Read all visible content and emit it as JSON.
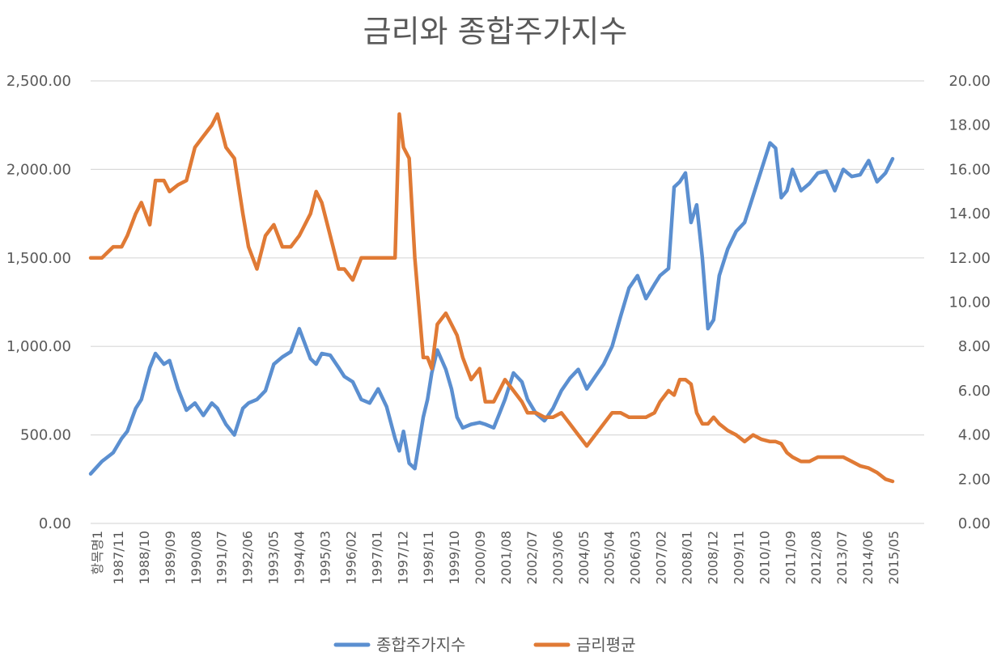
{
  "chart_data": {
    "type": "line",
    "title": "금리와 종합주가지수",
    "xlabel": "",
    "ylabel": "",
    "y_left": {
      "min": 0,
      "max": 2500,
      "ticks": [
        "0.00",
        "500.00",
        "1,000.00",
        "1,500.00",
        "2,000.00",
        "2,500.00"
      ]
    },
    "y_right": {
      "min": 0,
      "max": 20,
      "ticks": [
        "0.00",
        "2.00",
        "4.00",
        "6.00",
        "8.00",
        "10.00",
        "12.00",
        "14.00",
        "16.00",
        "18.00",
        "20.00"
      ]
    },
    "x_tick_labels": [
      "항목명1",
      "1987/11",
      "1988/10",
      "1989/09",
      "1990/08",
      "1991/07",
      "1992/06",
      "1993/05",
      "1994/04",
      "1995/03",
      "1996/02",
      "1997/01",
      "1997/12",
      "1998/11",
      "1999/10",
      "2000/09",
      "2001/08",
      "2002/07",
      "2003/06",
      "2004/05",
      "2005/04",
      "2006/03",
      "2007/02",
      "2008/01",
      "2008/12",
      "2009/11",
      "2010/10",
      "2011/09",
      "2012/08",
      "2013/07",
      "2014/06",
      "2015/05"
    ],
    "x": [
      1987.0,
      1987.4,
      1987.8,
      1988.1,
      1988.3,
      1988.6,
      1988.8,
      1989.1,
      1989.3,
      1989.6,
      1989.8,
      1990.1,
      1990.4,
      1990.7,
      1991.0,
      1991.3,
      1991.5,
      1991.8,
      1992.1,
      1992.4,
      1992.6,
      1992.9,
      1993.2,
      1993.5,
      1993.8,
      1994.1,
      1994.4,
      1994.8,
      1995.0,
      1995.2,
      1995.5,
      1995.8,
      1996.0,
      1996.3,
      1996.6,
      1996.9,
      1997.2,
      1997.5,
      1997.8,
      1997.95,
      1998.1,
      1998.3,
      1998.5,
      1998.8,
      1998.95,
      1999.1,
      1999.3,
      1999.6,
      1999.8,
      2000.0,
      2000.2,
      2000.5,
      2000.8,
      2001.0,
      2001.3,
      2001.5,
      2001.7,
      2002.0,
      2002.3,
      2002.5,
      2002.8,
      2003.1,
      2003.4,
      2003.7,
      2004.0,
      2004.3,
      2004.6,
      2004.9,
      2005.2,
      2005.5,
      2005.8,
      2006.1,
      2006.4,
      2006.7,
      2007.0,
      2007.2,
      2007.5,
      2007.7,
      2007.9,
      2008.1,
      2008.3,
      2008.5,
      2008.7,
      2008.9,
      2009.1,
      2009.3,
      2009.6,
      2009.9,
      2010.2,
      2010.5,
      2010.8,
      2011.1,
      2011.3,
      2011.5,
      2011.7,
      2011.9,
      2012.2,
      2012.5,
      2012.8,
      2013.1,
      2013.4,
      2013.7,
      2014.0,
      2014.3,
      2014.6,
      2014.9,
      2015.2,
      2015.45
    ],
    "series": [
      {
        "name": "종합주가지수",
        "color": "#5b8fd0",
        "axis": "left",
        "values": [
          280,
          350,
          400,
          480,
          520,
          650,
          700,
          880,
          960,
          900,
          920,
          760,
          640,
          680,
          610,
          680,
          650,
          560,
          500,
          650,
          680,
          700,
          750,
          900,
          940,
          970,
          1100,
          930,
          900,
          960,
          950,
          880,
          830,
          800,
          700,
          680,
          760,
          660,
          480,
          410,
          520,
          340,
          310,
          600,
          700,
          850,
          980,
          870,
          760,
          600,
          540,
          560,
          570,
          560,
          540,
          620,
          700,
          850,
          800,
          700,
          620,
          580,
          650,
          750,
          820,
          870,
          760,
          830,
          900,
          1000,
          1170,
          1330,
          1400,
          1270,
          1350,
          1400,
          1440,
          1900,
          1930,
          1980,
          1700,
          1800,
          1500,
          1100,
          1150,
          1400,
          1550,
          1650,
          1700,
          1850,
          2000,
          2150,
          2120,
          1840,
          1880,
          2000,
          1880,
          1920,
          1980,
          1990,
          1880,
          2000,
          1960,
          1970,
          2050,
          1930,
          1980,
          2060
        ]
      },
      {
        "name": "금리평균",
        "color": "#e07a35",
        "axis": "right",
        "values": [
          12.0,
          12.0,
          12.5,
          12.5,
          13.0,
          14.0,
          14.5,
          13.5,
          15.5,
          15.5,
          15.0,
          15.3,
          15.5,
          17.0,
          17.5,
          18.0,
          18.5,
          17.0,
          16.5,
          14.0,
          12.5,
          11.5,
          13.0,
          13.5,
          12.5,
          12.5,
          13.0,
          14.0,
          15.0,
          14.5,
          13.0,
          11.5,
          11.5,
          11.0,
          12.0,
          12.0,
          12.0,
          12.0,
          12.0,
          18.5,
          17.0,
          16.5,
          12.0,
          7.5,
          7.5,
          7.0,
          9.0,
          9.5,
          9.0,
          8.5,
          7.5,
          6.5,
          7.0,
          5.5,
          5.5,
          6.0,
          6.5,
          6.0,
          5.5,
          5.0,
          5.0,
          4.8,
          4.8,
          5.0,
          4.5,
          4.0,
          3.5,
          4.0,
          4.5,
          5.0,
          5.0,
          4.8,
          4.8,
          4.8,
          5.0,
          5.5,
          6.0,
          5.8,
          6.5,
          6.5,
          6.3,
          5.0,
          4.5,
          4.5,
          4.8,
          4.5,
          4.2,
          4.0,
          3.7,
          4.0,
          3.8,
          3.7,
          3.7,
          3.6,
          3.2,
          3.0,
          2.8,
          2.8,
          3.0,
          3.0,
          3.0,
          3.0,
          2.8,
          2.6,
          2.5,
          2.3,
          2.0,
          1.9
        ]
      }
    ],
    "legend": {
      "placement": "bottom",
      "entries": [
        "종합주가지수",
        "금리평균"
      ]
    },
    "grid": {
      "horizontal": true,
      "vertical": false
    }
  }
}
